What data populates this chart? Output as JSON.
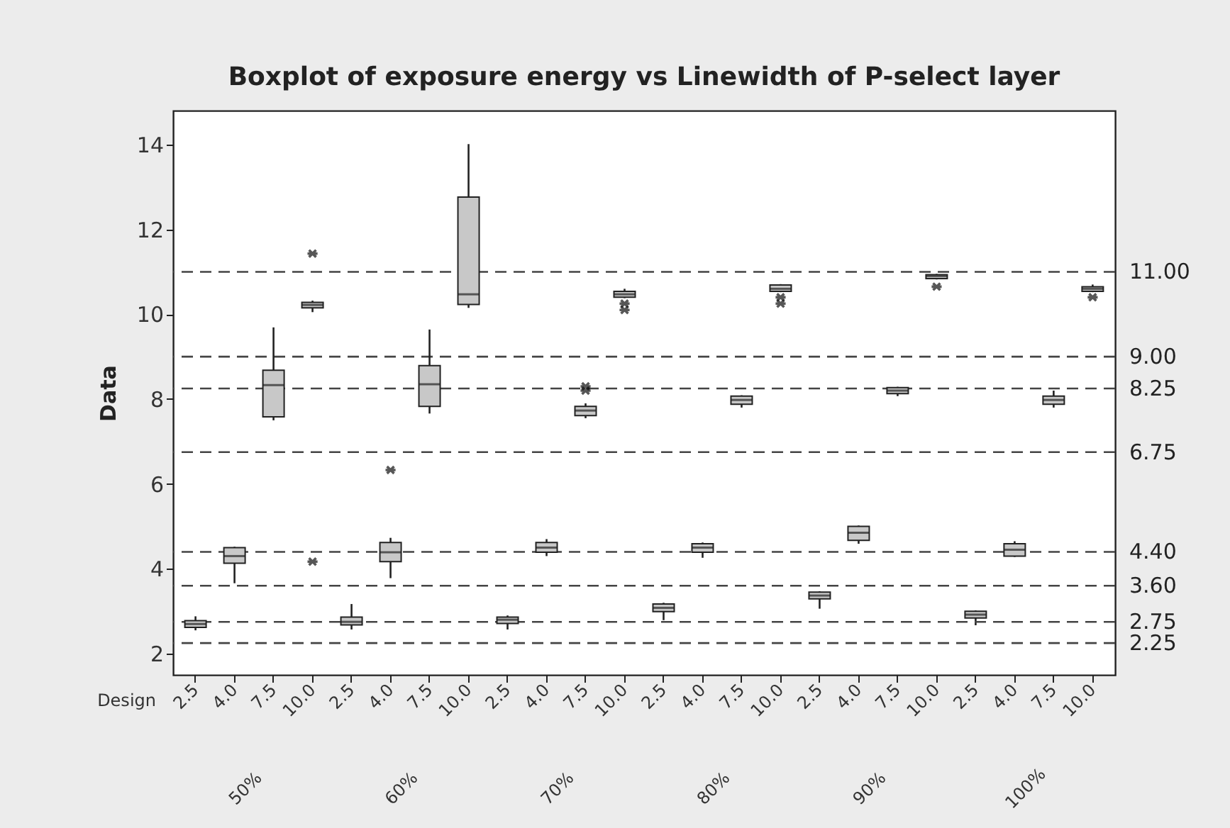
{
  "chart_data": {
    "type": "box",
    "title": "Boxplot of exposure energy vs Linewidth of P-select layer",
    "ylabel": "Data",
    "xlabel": "Design",
    "categories": [
      "2.5",
      "4.0",
      "7.5",
      "10.0",
      "2.5",
      "4.0",
      "7.5",
      "10.0",
      "2.5",
      "4.0",
      "7.5",
      "10.0",
      "2.5",
      "4.0",
      "7.5",
      "10.0",
      "2.5",
      "4.0",
      "7.5",
      "10.0",
      "2.5",
      "4.0",
      "7.5",
      "10.0"
    ],
    "annotations": [
      "50%",
      "60%",
      "70%",
      "80%",
      "90%",
      "100%"
    ],
    "ylim": [
      1.5,
      14.8
    ],
    "yticks": [
      2,
      4,
      6,
      8,
      10,
      12,
      14
    ],
    "grid": false,
    "legend": false,
    "series": [
      {
        "color": "#c8c8c8",
        "boxes": [
          {
            "low": 2.55,
            "q1": 2.62,
            "median": 2.7,
            "q3": 2.78,
            "high": 2.88
          },
          {
            "low": 3.66,
            "q1": 4.13,
            "median": 4.3,
            "q3": 4.5,
            "high": 4.52
          },
          {
            "low": 7.5,
            "q1": 7.58,
            "median": 8.33,
            "q3": 8.68,
            "high": 9.69
          },
          {
            "low": 10.05,
            "q1": 10.15,
            "median": 10.22,
            "q3": 10.28,
            "high": 10.32,
            "outliers": [
              11.43,
              4.17
            ]
          },
          {
            "low": 2.57,
            "q1": 2.68,
            "median": 2.75,
            "q3": 2.86,
            "high": 3.17
          },
          {
            "low": 3.78,
            "q1": 4.17,
            "median": 4.39,
            "q3": 4.62,
            "high": 4.73,
            "outliers": [
              6.33
            ]
          },
          {
            "low": 7.66,
            "q1": 7.83,
            "median": 8.35,
            "q3": 8.79,
            "high": 9.64
          },
          {
            "low": 10.15,
            "q1": 10.23,
            "median": 10.47,
            "q3": 12.76,
            "high": 14.01
          },
          {
            "low": 2.57,
            "q1": 2.71,
            "median": 2.8,
            "q3": 2.86,
            "high": 2.9
          },
          {
            "low": 4.3,
            "q1": 4.39,
            "median": 4.5,
            "q3": 4.62,
            "high": 4.7
          },
          {
            "low": 7.55,
            "q1": 7.61,
            "median": 7.73,
            "q3": 7.83,
            "high": 7.9,
            "outliers": [
              8.3,
              8.2
            ]
          },
          {
            "low": 10.38,
            "q1": 10.4,
            "median": 10.47,
            "q3": 10.54,
            "high": 10.6,
            "outliers": [
              10.25,
              10.1
            ]
          },
          {
            "low": 2.79,
            "q1": 2.99,
            "median": 3.08,
            "q3": 3.17,
            "high": 3.2
          },
          {
            "low": 4.26,
            "q1": 4.39,
            "median": 4.5,
            "q3": 4.59,
            "high": 4.62
          },
          {
            "low": 7.8,
            "q1": 7.88,
            "median": 7.98,
            "q3": 8.07,
            "high": 8.09
          },
          {
            "low": 10.52,
            "q1": 10.54,
            "median": 10.6,
            "q3": 10.69,
            "high": 10.71,
            "outliers": [
              10.4,
              10.25
            ]
          },
          {
            "low": 3.06,
            "q1": 3.29,
            "median": 3.37,
            "q3": 3.45,
            "high": 3.47
          },
          {
            "low": 4.59,
            "q1": 4.67,
            "median": 4.85,
            "q3": 5.0,
            "high": 5.02
          },
          {
            "low": 8.07,
            "q1": 8.13,
            "median": 8.2,
            "q3": 8.27,
            "high": 8.29
          },
          {
            "low": 10.82,
            "q1": 10.84,
            "median": 10.9,
            "q3": 10.93,
            "high": 10.95,
            "outliers": [
              10.65
            ]
          },
          {
            "low": 2.67,
            "q1": 2.84,
            "median": 2.92,
            "q3": 3.0,
            "high": 3.02
          },
          {
            "low": 4.28,
            "q1": 4.3,
            "median": 4.45,
            "q3": 4.59,
            "high": 4.65
          },
          {
            "low": 7.8,
            "q1": 7.88,
            "median": 7.98,
            "q3": 8.07,
            "high": 8.2
          },
          {
            "low": 10.52,
            "q1": 10.54,
            "median": 10.6,
            "q3": 10.65,
            "high": 10.7,
            "outliers": [
              10.4
            ]
          }
        ]
      }
    ],
    "ref_lines": [
      {
        "axis": "y",
        "value": 11,
        "label": "11.00",
        "line_style": "dashed"
      },
      {
        "axis": "y",
        "value": 9,
        "label": "9.00",
        "line_style": "dashed"
      },
      {
        "axis": "y",
        "value": 8.25,
        "label": "8.25",
        "line_style": "dashed"
      },
      {
        "axis": "y",
        "value": 6.75,
        "label": "6.75",
        "line_style": "dashed"
      },
      {
        "axis": "y",
        "value": 4.4,
        "label": "4.40",
        "line_style": "dashed"
      },
      {
        "axis": "y",
        "value": 3.6,
        "label": "3.60",
        "line_style": "dashed"
      },
      {
        "axis": "y",
        "value": 2.75,
        "label": "2.75",
        "line_style": "dashed"
      },
      {
        "axis": "y",
        "value": 2.25,
        "label": "2.25",
        "line_style": "dashed"
      }
    ]
  }
}
